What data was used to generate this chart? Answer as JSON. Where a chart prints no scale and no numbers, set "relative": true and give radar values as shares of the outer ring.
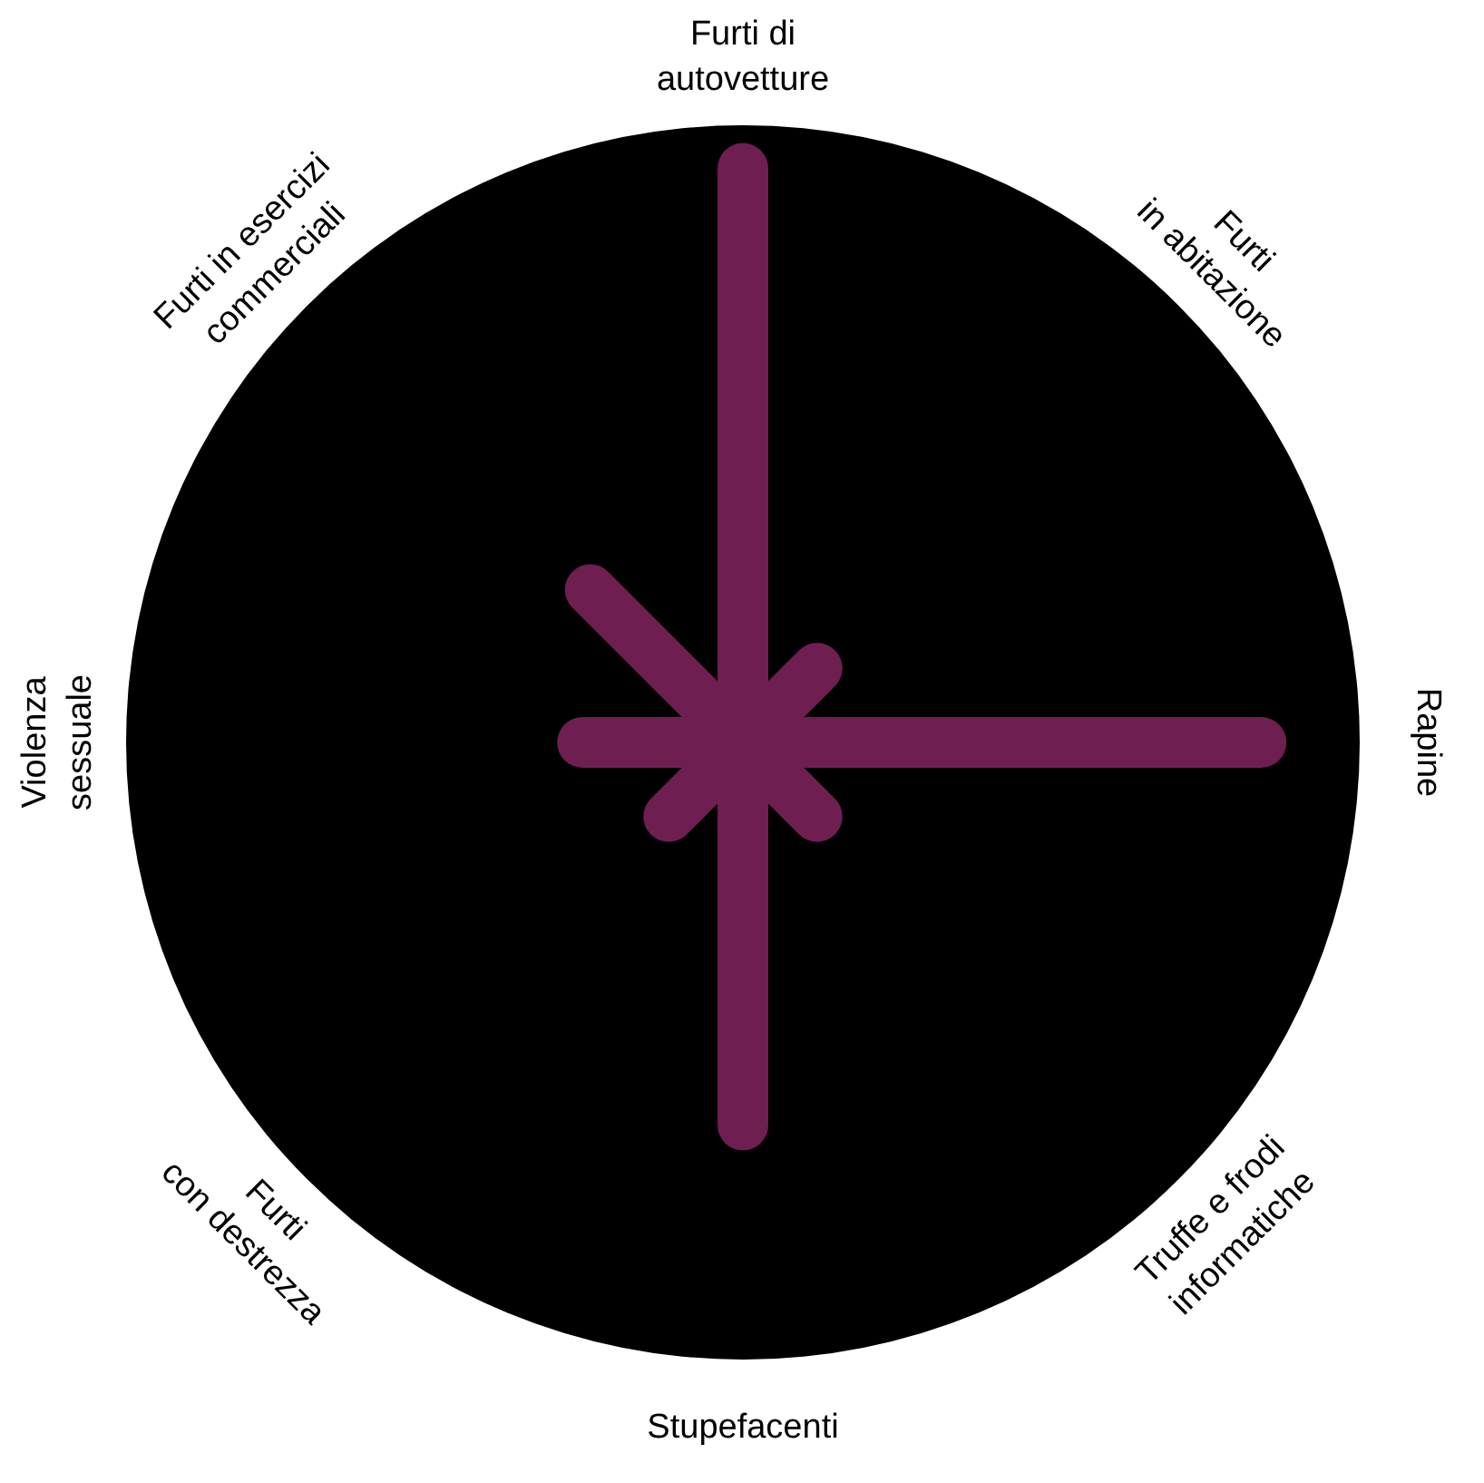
{
  "chart_data": {
    "type": "radar",
    "relative": true,
    "categories": [
      "Furti di\nautovetture",
      "Furti\nin abitazione",
      "Rapine",
      "Truffe e frodi\ninformatiche",
      "Stupefacenti",
      "Furti\ncon destrezza",
      "Violenza\nsessuale",
      "Furti in esercizi\ncommerciali"
    ],
    "series": [
      {
        "color": "#6e1e50",
        "values": [
          0.93,
          0.17,
          0.84,
          0.17,
          0.62,
          0.17,
          0.26,
          0.35
        ]
      }
    ]
  }
}
